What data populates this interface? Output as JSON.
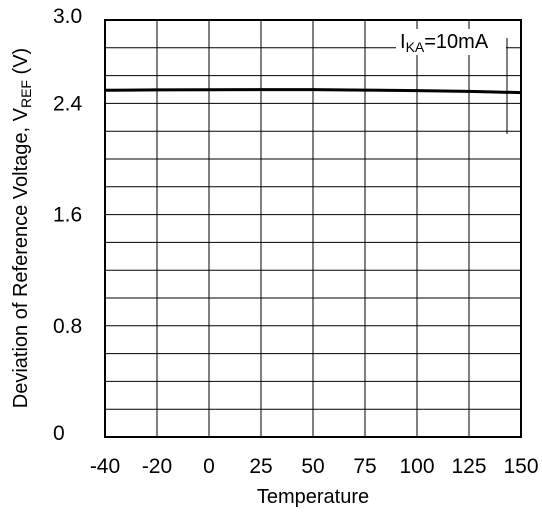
{
  "chart_data": {
    "type": "line",
    "xlabel": "Temperature",
    "ylabel": {
      "prefix": "Deviation of Reference Voltage, V",
      "subscript": "REF",
      "suffix": " (V)"
    },
    "x_ticks": [
      "-40",
      "-20",
      "0",
      "25",
      "50",
      "75",
      "100",
      "125",
      "150"
    ],
    "y_ticks": [
      "0",
      "0.8",
      "1.6",
      "2.4",
      "3.0"
    ],
    "annotation": {
      "prefix": "I",
      "subscript": "KA",
      "suffix": "=10mA"
    },
    "ylim": [
      0,
      3.0
    ],
    "grid": true,
    "series": [
      {
        "x": [
          -40,
          -20,
          0,
          25,
          50,
          75,
          100,
          125,
          150
        ],
        "values": [
          2.495,
          2.497,
          2.498,
          2.499,
          2.499,
          2.496,
          2.492,
          2.486,
          2.478
        ]
      }
    ]
  }
}
